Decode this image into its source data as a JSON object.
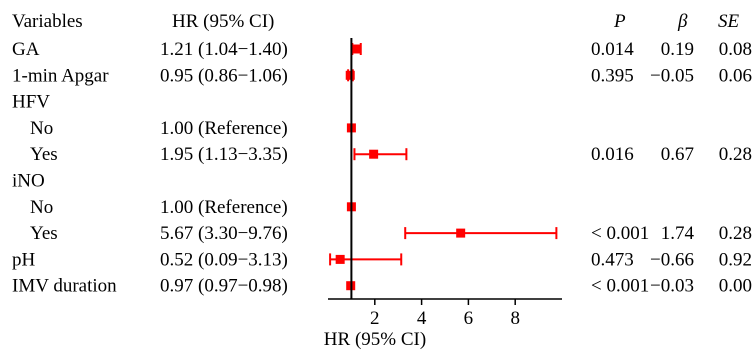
{
  "headers": {
    "variables": "Variables",
    "hr": "HR (95% CI)",
    "p": "P",
    "beta": "β",
    "se": "SE"
  },
  "chart_data": {
    "type": "forest",
    "xlabel": "HR (95% CI)",
    "xlim": [
      0,
      10
    ],
    "xticks": [
      2,
      4,
      6,
      8
    ],
    "reference_line": 1,
    "marker_color": "#ff0000",
    "rows": [
      {
        "label": "GA",
        "indent": false,
        "hr_text": "1.21 (1.04−1.40)",
        "hr": 1.21,
        "lo": 1.04,
        "hi": 1.4,
        "p": "0.014",
        "beta": "0.19",
        "se": "0.08"
      },
      {
        "label": "1-min Apgar",
        "indent": false,
        "hr_text": "0.95 (0.86−1.06)",
        "hr": 0.95,
        "lo": 0.86,
        "hi": 1.06,
        "p": "0.395",
        "beta": "−0.05",
        "se": "0.06"
      },
      {
        "label": "HFV",
        "indent": false,
        "hr_text": "",
        "hr": null,
        "lo": null,
        "hi": null,
        "p": "",
        "beta": "",
        "se": ""
      },
      {
        "label": "No",
        "indent": true,
        "hr_text": "1.00 (Reference)",
        "hr": 1.0,
        "lo": 1.0,
        "hi": 1.0,
        "p": "",
        "beta": "",
        "se": ""
      },
      {
        "label": "Yes",
        "indent": true,
        "hr_text": "1.95 (1.13−3.35)",
        "hr": 1.95,
        "lo": 1.13,
        "hi": 3.35,
        "p": "0.016",
        "beta": "0.67",
        "se": "0.28"
      },
      {
        "label": "iNO",
        "indent": false,
        "hr_text": "",
        "hr": null,
        "lo": null,
        "hi": null,
        "p": "",
        "beta": "",
        "se": ""
      },
      {
        "label": "No",
        "indent": true,
        "hr_text": "1.00 (Reference)",
        "hr": 1.0,
        "lo": 1.0,
        "hi": 1.0,
        "p": "",
        "beta": "",
        "se": ""
      },
      {
        "label": "Yes",
        "indent": true,
        "hr_text": "5.67 (3.30−9.76)",
        "hr": 5.67,
        "lo": 3.3,
        "hi": 9.76,
        "p": "< 0.001",
        "beta": "1.74",
        "se": "0.28"
      },
      {
        "label": "pH",
        "indent": false,
        "hr_text": "0.52 (0.09−3.13)",
        "hr": 0.52,
        "lo": 0.09,
        "hi": 3.13,
        "p": "0.473",
        "beta": "−0.66",
        "se": "0.92"
      },
      {
        "label": "IMV duration",
        "indent": false,
        "hr_text": "0.97 (0.97−0.98)",
        "hr": 0.97,
        "lo": 0.97,
        "hi": 0.98,
        "p": "< 0.001",
        "beta": "−0.03",
        "se": "0.00"
      }
    ]
  }
}
